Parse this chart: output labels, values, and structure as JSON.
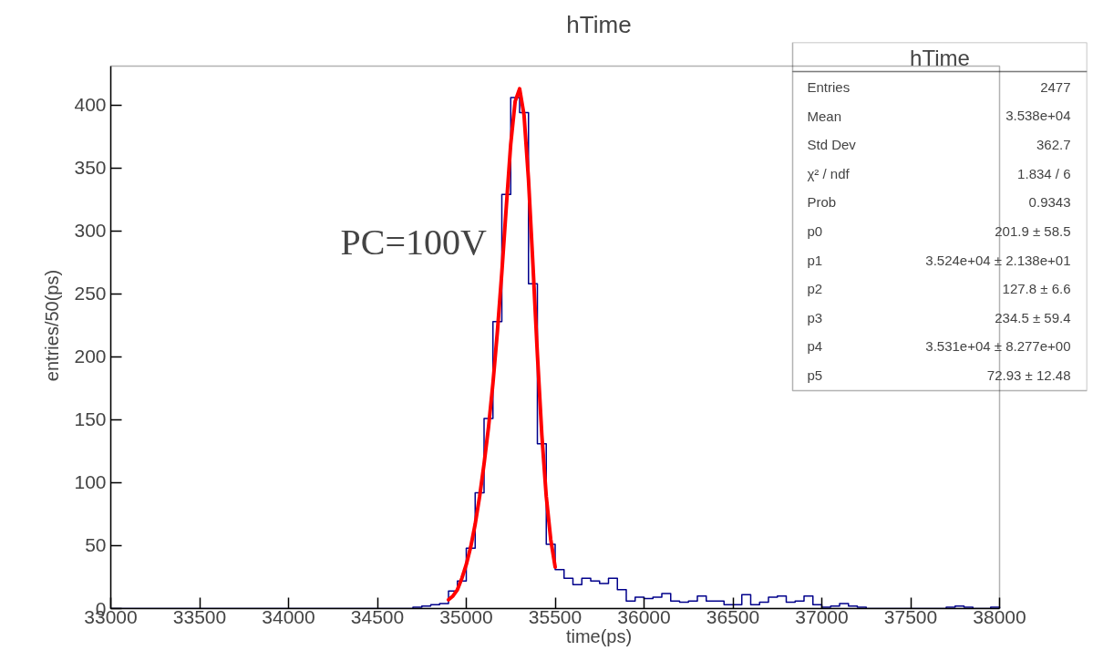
{
  "chart_data": {
    "type": "histogram",
    "title": "hTime",
    "xlabel": "time(ps)",
    "ylabel": "entries/50(ps)",
    "bins": [
      33000,
      33050,
      33100,
      33150,
      33200,
      33250,
      33300,
      33350,
      33400,
      33450,
      33500,
      33550,
      33600,
      33650,
      33700,
      33750,
      33800,
      33850,
      33900,
      33950,
      34000,
      34050,
      34100,
      34150,
      34200,
      34250,
      34300,
      34350,
      34400,
      34450,
      34500,
      34550,
      34600,
      34650,
      34700,
      34750,
      34800,
      34850,
      34900,
      34950,
      35000,
      35050,
      35100,
      35150,
      35200,
      35250,
      35300,
      35350,
      35400,
      35450,
      35500,
      35550,
      35600,
      35650,
      35700,
      35750,
      35800,
      35850,
      35900,
      35950,
      36000,
      36050,
      36100,
      36150,
      36200,
      36250,
      36300,
      36350,
      36400,
      36450,
      36500,
      36550,
      36600,
      36650,
      36700,
      36750,
      36800,
      36850,
      36900,
      36950,
      37000,
      37050,
      37100,
      37150,
      37200,
      37250,
      37300,
      37350,
      37400,
      37450,
      37500,
      37550,
      37600,
      37650,
      37700,
      37750,
      37800,
      37850,
      37900,
      37950,
      38000
    ],
    "values": [
      0,
      0,
      0,
      0,
      0,
      0,
      0,
      0,
      0,
      0,
      0,
      0,
      0,
      0,
      0,
      0,
      0,
      0,
      0,
      0,
      0,
      0,
      0,
      0,
      0,
      0,
      0,
      0,
      0,
      0,
      0,
      0,
      0,
      0,
      1,
      2,
      3,
      4,
      14,
      22,
      48,
      92,
      151,
      228,
      329,
      406,
      394,
      258,
      131,
      51,
      31,
      24,
      19,
      24,
      22,
      20,
      24,
      15,
      6,
      9,
      8,
      9,
      12,
      6,
      5,
      6,
      10,
      6,
      6,
      3,
      3,
      11,
      3,
      5,
      9,
      10,
      5,
      6,
      10,
      3,
      1,
      2,
      4,
      2,
      1,
      0,
      0,
      0,
      0,
      0,
      0,
      0,
      0,
      0,
      1,
      2,
      1,
      0,
      0,
      1
    ],
    "color": "#00008b",
    "series": [
      {
        "type": "line",
        "color": "#ff0000",
        "x": [
          34900,
          34925,
          34950,
          34975,
          35000,
          35025,
          35050,
          35075,
          35100,
          35125,
          35150,
          35175,
          35200,
          35225,
          35250,
          35275,
          35300,
          35325,
          35350,
          35375,
          35400,
          35425,
          35450,
          35475,
          35500
        ],
        "values": [
          7,
          10,
          15,
          24,
          35,
          49,
          67,
          89,
          115,
          144,
          179,
          220,
          267,
          319,
          369,
          403,
          413,
          392,
          341,
          273,
          202,
          138,
          89,
          55,
          33
        ]
      }
    ],
    "xlim": [
      33000,
      38000
    ],
    "ylim": [
      0,
      431
    ],
    "xticks": [
      33000,
      33500,
      34000,
      34500,
      35000,
      35500,
      36000,
      36500,
      37000,
      37500,
      38000
    ],
    "yticks": [
      0,
      50,
      100,
      150,
      200,
      250,
      300,
      350,
      400
    ],
    "grid": false,
    "annotations": [
      "PC=100V",
      "hTime",
      "Entries",
      "2477",
      "Mean",
      "3.538e+04",
      "Std Dev",
      "362.7",
      "χ² / ndf",
      "1.834 / 6",
      "Prob",
      "0.9343",
      "p0",
      "201.9 ± 58.5",
      "p1",
      "3.524e+04 ± 2.138e+01",
      "p2",
      "127.8 ± 6.6",
      "p3",
      "234.5 ± 59.4",
      "p4",
      "3.531e+04 ± 8.277e+00",
      "p5",
      "72.93 ± 12.48"
    ]
  }
}
